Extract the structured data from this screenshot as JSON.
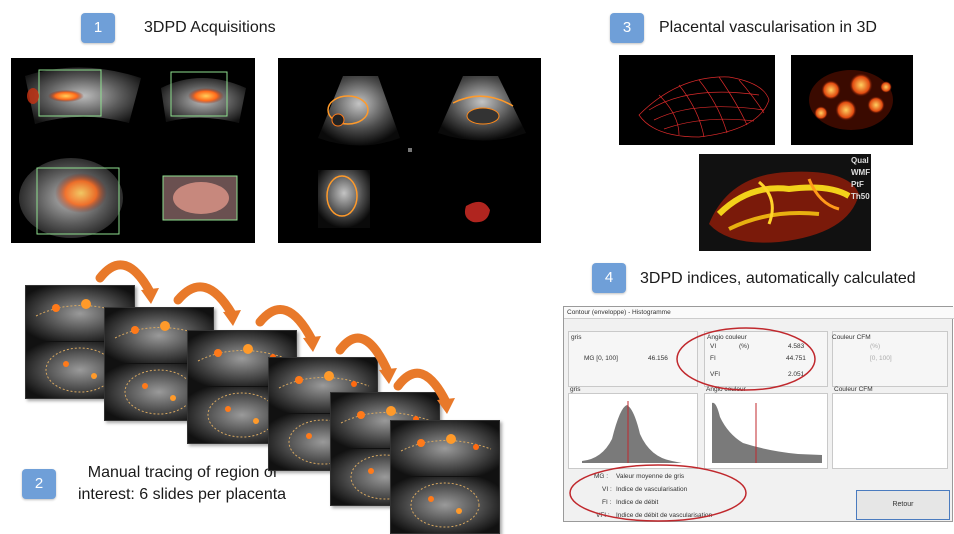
{
  "steps": [
    {
      "number": "1",
      "title": "3DPD Acquisitions"
    },
    {
      "number": "2",
      "title_line1": "Manual tracing of region of",
      "title_line2": "interest: 6 slides per placenta"
    },
    {
      "number": "3",
      "title": "Placental vascularisation in 3D"
    },
    {
      "number": "4",
      "title": "3DPD indices, automatically calculated"
    }
  ],
  "render3d_overlay": [
    "Qual",
    "WMF",
    "PtF",
    "Th50"
  ],
  "dialog": {
    "title": "Contour (enveloppe) - Histogramme",
    "gris_label": "gris",
    "angio_label": "Angio couleur",
    "cfm_label": "Couleur CFM",
    "mg_label": "MG [0, 100]",
    "mg_value": "46.156",
    "percent_label": "(%)",
    "vi_label": "VI",
    "vi_value": "4.583",
    "fi_label": "FI",
    "fi_value": "44.751",
    "vfi_label": "VFI",
    "vfi_value": "2.051",
    "cfm_percent": "(%)",
    "cfm_range": "[0, 100]",
    "hist_gris_label": "gris",
    "hist_angio_label": "Angio couleur",
    "hist_cfm_label": "Couleur CFM",
    "legend": [
      {
        "abbr": "MG :",
        "text": "Valeur moyenne de gris"
      },
      {
        "abbr": "VI :",
        "text": "Indice de vascularisation"
      },
      {
        "abbr": "FI :",
        "text": "Indice de débit"
      },
      {
        "abbr": "VFI :",
        "text": "Indice de débit de vascularisation"
      }
    ],
    "button_label": "Retour"
  },
  "colors": {
    "badge": "#6f9fd8",
    "arrow": "#e8792a",
    "ellipse": "#c0282d",
    "doppler": "#ff7a1a",
    "button_border": "#4a7bbf"
  }
}
